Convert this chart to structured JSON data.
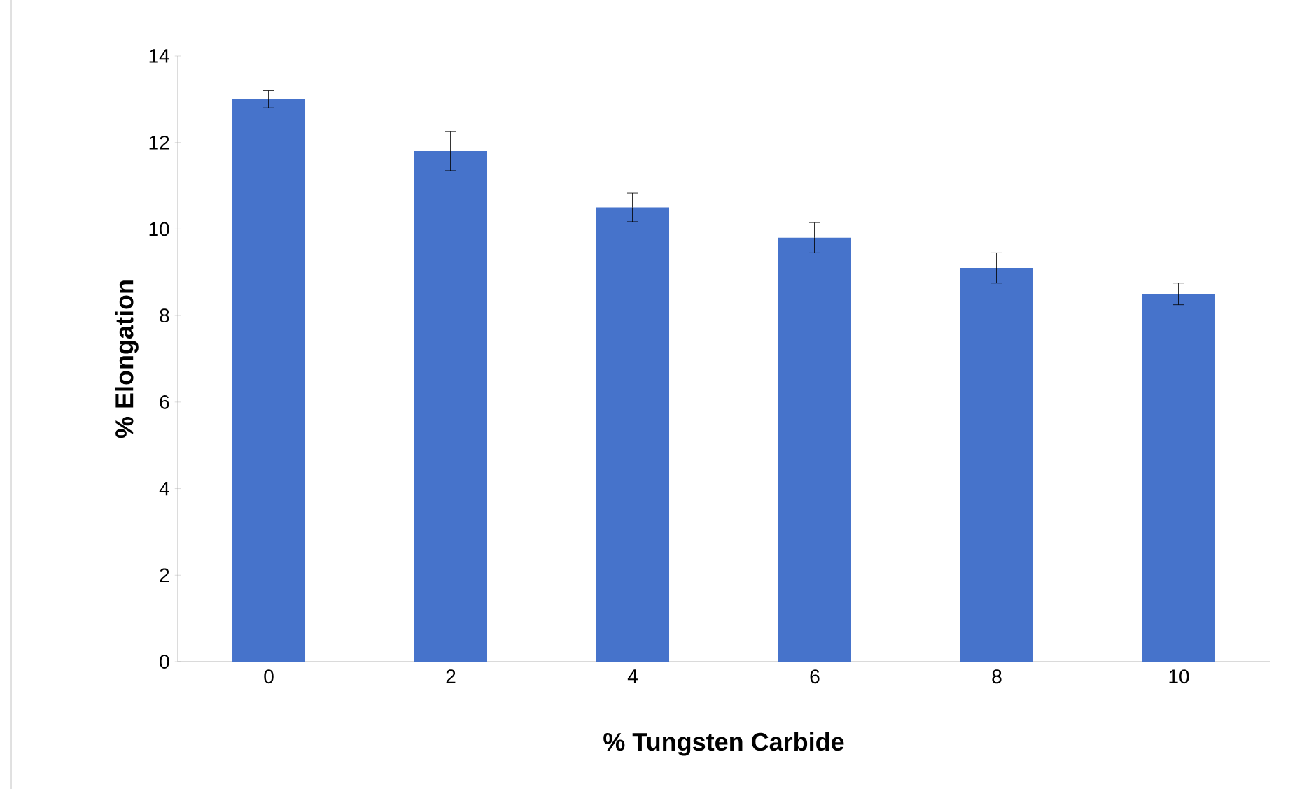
{
  "chart_data": {
    "type": "bar",
    "xlabel": "% Tungsten Carbide",
    "ylabel": "% Elongation",
    "categories": [
      "0",
      "2",
      "4",
      "6",
      "8",
      "10"
    ],
    "values": [
      13.0,
      11.8,
      10.5,
      9.8,
      9.1,
      8.5
    ],
    "errors": [
      0.2,
      0.45,
      0.33,
      0.35,
      0.35,
      0.25
    ],
    "color": "#4673cb",
    "ylim": [
      0,
      14
    ],
    "yticks": [
      0,
      2,
      4,
      6,
      8,
      10,
      12,
      14
    ],
    "grid": false
  }
}
